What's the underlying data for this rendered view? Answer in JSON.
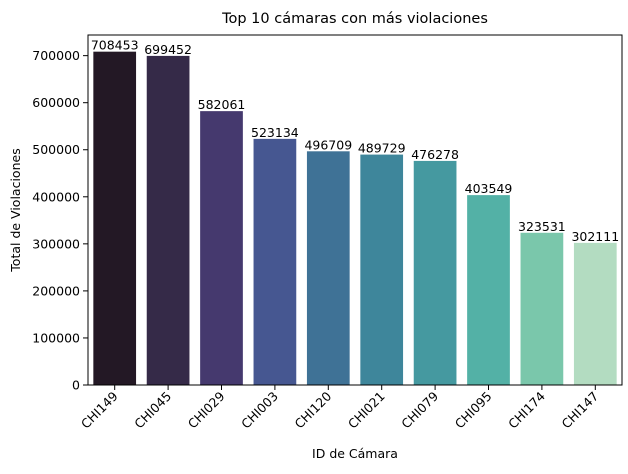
{
  "chart_data": {
    "type": "bar",
    "title": "Top 10 cámaras con más violaciones",
    "xlabel": "ID de Cámara",
    "ylabel": "Total de Violaciones",
    "categories": [
      "CHI149",
      "CHI045",
      "CHI029",
      "CHI003",
      "CHI120",
      "CHI021",
      "CHI079",
      "CHI095",
      "CHI174",
      "CHI147"
    ],
    "values": [
      708453,
      699452,
      582061,
      523134,
      496709,
      489729,
      476278,
      403549,
      323531,
      302111
    ],
    "data_labels": [
      "708453",
      "699452",
      "582061",
      "523134",
      "496709",
      "489729",
      "476278",
      "403549",
      "323531",
      "302111"
    ],
    "ylim": [
      0,
      743876
    ],
    "yticks": [
      0,
      100000,
      200000,
      300000,
      400000,
      500000,
      600000,
      700000
    ],
    "ytick_labels": [
      "0",
      "100000",
      "200000",
      "300000",
      "400000",
      "500000",
      "600000",
      "700000"
    ],
    "colors": [
      "#231825",
      "#352a48",
      "#45396e",
      "#465791",
      "#3f7296",
      "#3e869b",
      "#4599a0",
      "#53b1a6",
      "#7ac7ab",
      "#b3dcc1"
    ],
    "grid": false,
    "legend": "none",
    "x_tick_rotation_deg": 45
  }
}
